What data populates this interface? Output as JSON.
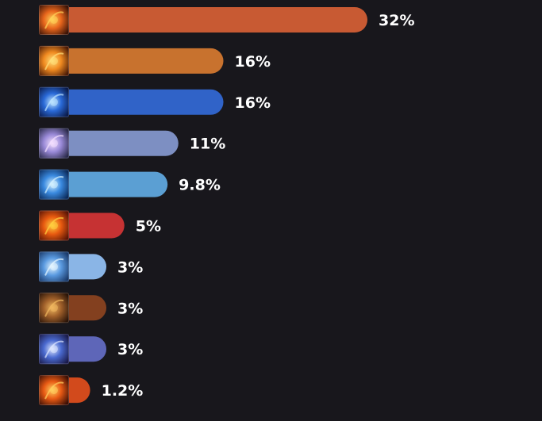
{
  "chart_data": {
    "type": "bar",
    "orientation": "horizontal",
    "title": "",
    "xlabel": "",
    "ylabel": "",
    "xlim": [
      0,
      32
    ],
    "grid": false,
    "legend": "none",
    "bars": [
      {
        "value": 32,
        "label": "32%",
        "color": "#c85a33",
        "icon": "meteor-fire-icon",
        "icon_colors": [
          "#3a1206",
          "#e8661c",
          "#ffd45a"
        ]
      },
      {
        "value": 16,
        "label": "16%",
        "color": "#c8722e",
        "icon": "fireball-icon",
        "icon_colors": [
          "#4a1a06",
          "#f08a20",
          "#ffe07a"
        ]
      },
      {
        "value": 16,
        "label": "16%",
        "color": "#3063c8",
        "icon": "lightning-bolt-icon",
        "icon_colors": [
          "#0a1a4a",
          "#2a6ad8",
          "#bfe6ff"
        ]
      },
      {
        "value": 11,
        "label": "11%",
        "color": "#7d8fc2",
        "icon": "crystal-flower-icon",
        "icon_colors": [
          "#2a2a4a",
          "#9a8ad8",
          "#f4e0ff"
        ]
      },
      {
        "value": 9.8,
        "label": "9.8%",
        "color": "#5b9fd3",
        "icon": "ice-shard-icon",
        "icon_colors": [
          "#0a2a5a",
          "#3a8ae0",
          "#d6f2ff"
        ]
      },
      {
        "value": 5,
        "label": "5%",
        "color": "#c63233",
        "icon": "flame-wave-icon",
        "icon_colors": [
          "#5a1404",
          "#e85a10",
          "#ffd040"
        ]
      },
      {
        "value": 3,
        "label": "3%",
        "color": "#8ab5e6",
        "icon": "frost-rune-icon",
        "icon_colors": [
          "#1a3a6a",
          "#5a9ae0",
          "#e6f6ff"
        ]
      },
      {
        "value": 3,
        "label": "3%",
        "color": "#83401f",
        "icon": "bronze-sigil-icon",
        "icon_colors": [
          "#2a1408",
          "#a0602a",
          "#f0b860"
        ]
      },
      {
        "value": 3,
        "label": "3%",
        "color": "#5e66b8",
        "icon": "arcane-figure-icon",
        "icon_colors": [
          "#1a1a4a",
          "#4a6ad0",
          "#dfe8ff"
        ]
      },
      {
        "value": 1.2,
        "label": "1.2%",
        "color": "#d24a1c",
        "icon": "fire-pillar-icon",
        "icon_colors": [
          "#3a0e04",
          "#e85a14",
          "#ffd060"
        ]
      }
    ]
  }
}
